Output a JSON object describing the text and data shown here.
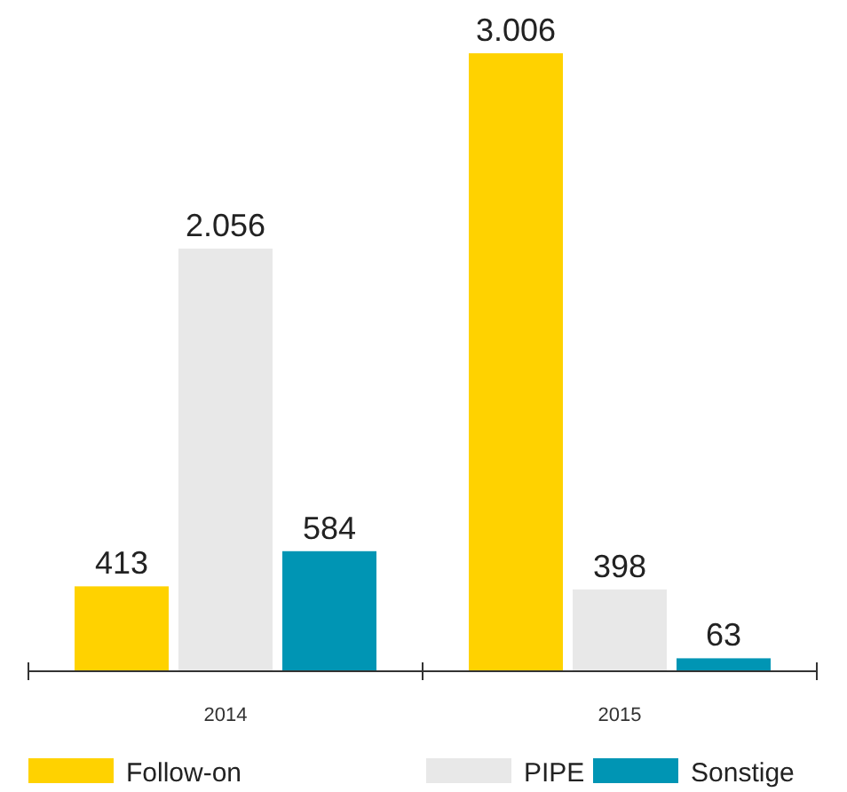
{
  "chart_data": {
    "type": "bar",
    "categories": [
      "2014",
      "2015"
    ],
    "series": [
      {
        "name": "Follow-on",
        "color": "#ffd200",
        "values": [
          413,
          3006
        ],
        "value_labels": [
          "413",
          "3.006"
        ]
      },
      {
        "name": "PIPE",
        "color": "#e8e8e8",
        "values": [
          2056,
          398
        ],
        "value_labels": [
          "2.056",
          "398"
        ]
      },
      {
        "name": "Sonstige",
        "color": "#0095b4",
        "values": [
          584,
          63
        ],
        "value_labels": [
          "584",
          "63"
        ]
      }
    ],
    "legend": "bottom"
  }
}
